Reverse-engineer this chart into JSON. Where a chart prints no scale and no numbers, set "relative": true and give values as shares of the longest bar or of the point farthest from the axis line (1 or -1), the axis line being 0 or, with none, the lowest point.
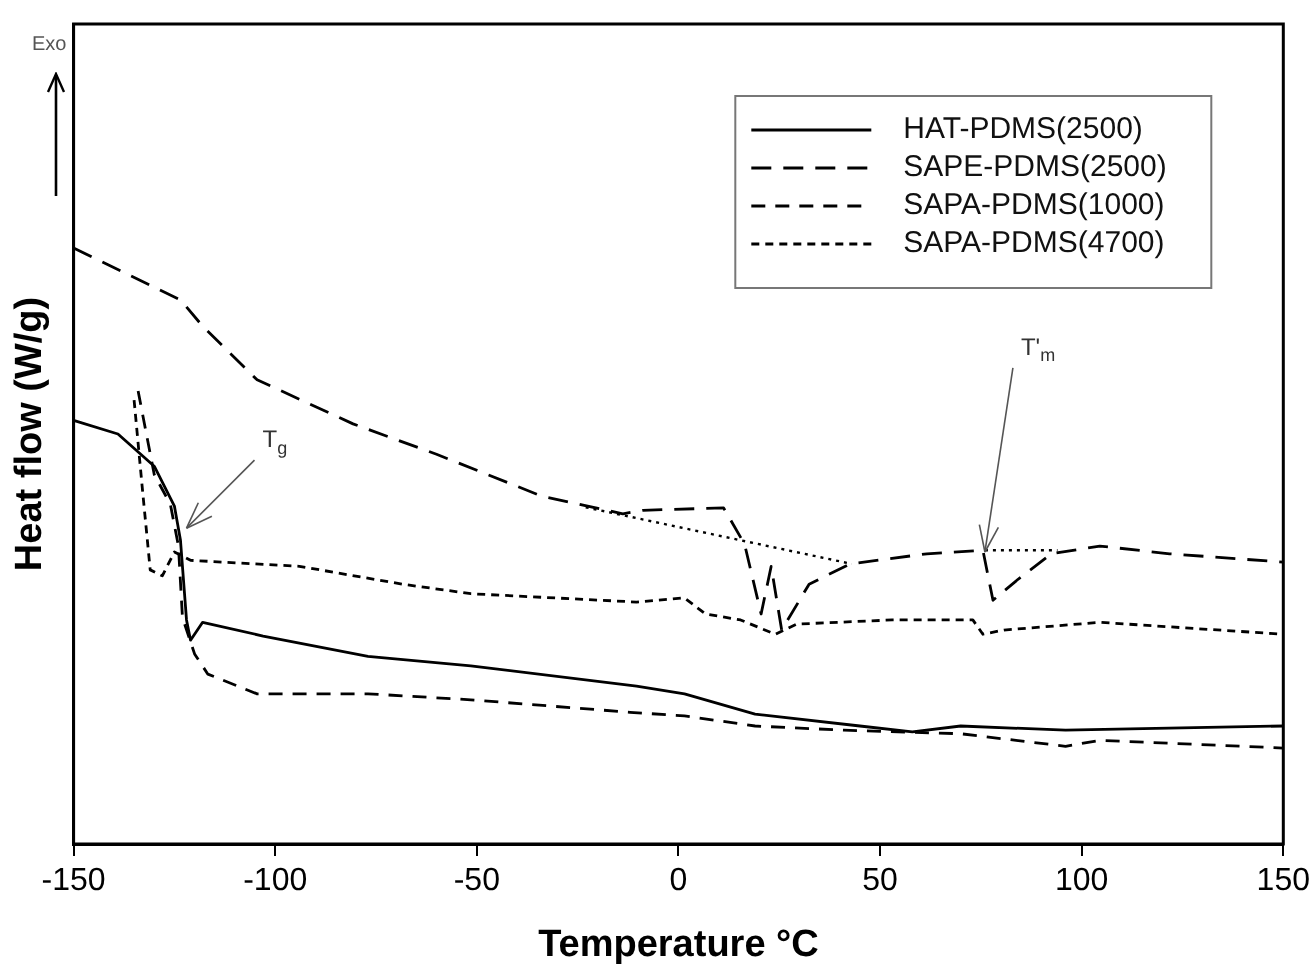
{
  "chart_data": {
    "type": "line",
    "relative": true,
    "xlabel": "Temperature °C",
    "ylabel": "Heat flow (W/g)",
    "xlim": [
      -150,
      150
    ],
    "xticks": [
      -150,
      -100,
      -50,
      0,
      50,
      100,
      150
    ],
    "grid": false,
    "legend": "top right",
    "marker": "none",
    "annotations": [
      "Exo",
      {
        "text": "T$_{g}$",
        "x": -122,
        "y": 0.53
      },
      {
        "text": "T'$_{m}$",
        "x": 76,
        "y": 0.49
      }
    ],
    "series": [
      {
        "name": "HAT-PDMS(2500)",
        "color": "#000000",
        "line_style": "solid",
        "x": [
          -150,
          -139,
          -130,
          -125,
          -123.5,
          -122,
          -121,
          -118,
          -103,
          -77,
          -51.5,
          -10.4,
          1.5,
          19,
          45,
          58,
          70,
          96,
          150
        ],
        "values": [
          0.711,
          0.688,
          0.634,
          0.567,
          0.51,
          0.376,
          0.342,
          0.372,
          0.349,
          0.315,
          0.299,
          0.265,
          0.252,
          0.218,
          0.198,
          0.188,
          0.198,
          0.191,
          0.198
        ]
      },
      {
        "name": "SAPE-PDMS(2500)",
        "color": "#000000",
        "line_style": "dashed",
        "x": [
          -150,
          -123.5,
          -118,
          -104.5,
          -80.7,
          -60,
          -34,
          -13.8,
          -8.8,
          11.2,
          16.4,
          20.5,
          23,
          25.6,
          32.4,
          42.6,
          61.6,
          75.5,
          78,
          84,
          92.5,
          104.5,
          121.8,
          150
        ],
        "values": [
          1.0,
          0.913,
          0.869,
          0.779,
          0.705,
          0.654,
          0.584,
          0.554,
          0.56,
          0.564,
          0.503,
          0.386,
          0.466,
          0.359,
          0.436,
          0.47,
          0.487,
          0.493,
          0.409,
          0.443,
          0.487,
          0.5,
          0.487,
          0.473
        ]
      },
      {
        "name": "SAPA-PDMS(1000)",
        "color": "#000000",
        "line_style": "dashed",
        "x": [
          -134,
          -130,
          -126,
          -124,
          -123,
          -120,
          -116.7,
          -104.5,
          -77,
          -51.5,
          -12,
          1.5,
          19,
          41,
          70,
          96,
          104.5,
          150
        ],
        "values": [
          0.76,
          0.62,
          0.57,
          0.5,
          0.38,
          0.319,
          0.285,
          0.252,
          0.252,
          0.242,
          0.221,
          0.215,
          0.198,
          0.191,
          0.185,
          0.164,
          0.174,
          0.161
        ]
      },
      {
        "name": "SAPA-PDMS(4700)",
        "color": "#000000",
        "line_style": "dashed",
        "x": [
          -135,
          -133,
          -131,
          -128,
          -125,
          -121,
          -94,
          -68.5,
          -51.5,
          -10.4,
          1.5,
          6.7,
          15.4,
          24,
          29.3,
          53,
          73,
          75.5,
          80.7,
          104.5,
          150
        ],
        "values": [
          0.745,
          0.6,
          0.46,
          0.45,
          0.49,
          0.476,
          0.466,
          0.436,
          0.42,
          0.406,
          0.413,
          0.386,
          0.376,
          0.352,
          0.369,
          0.376,
          0.376,
          0.352,
          0.359,
          0.372,
          0.352
        ]
      },
      {
        "color": "#000000",
        "line_style": "dotted",
        "x": [
          -23,
          43
        ],
        "values": [
          0.565,
          0.47
        ]
      },
      {
        "color": "#000000",
        "line_style": "dotted",
        "x": [
          76,
          94
        ],
        "values": [
          0.493,
          0.493
        ]
      }
    ]
  }
}
